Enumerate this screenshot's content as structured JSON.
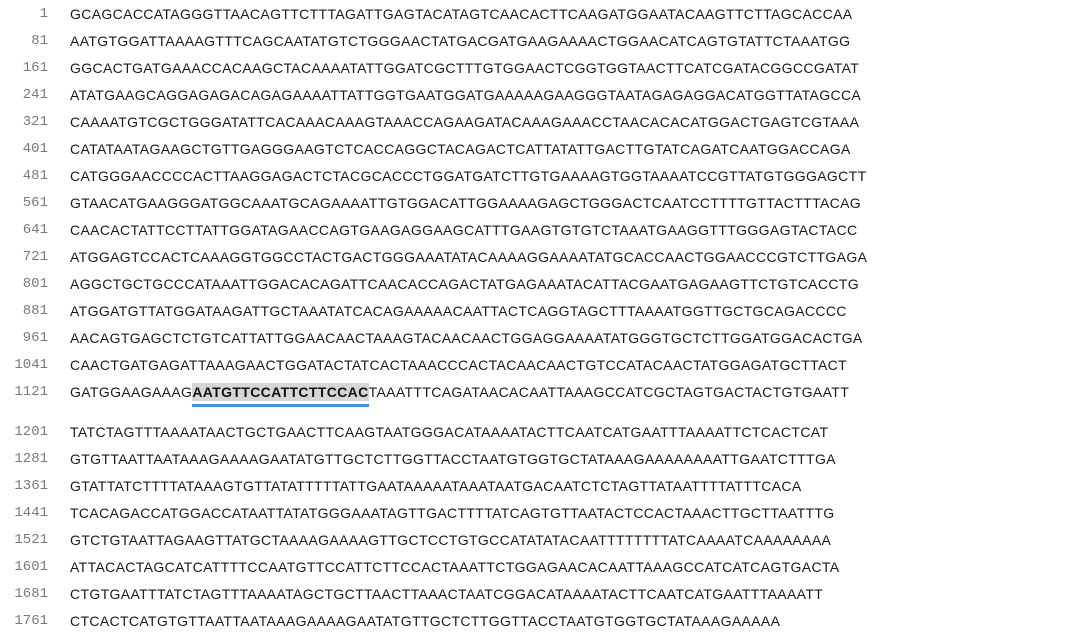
{
  "colors": {
    "background": "#ffffff",
    "position_text": "#7a7a7a",
    "sequence_text": "#1a1a1a",
    "highlight_bg": "#d6d6d6",
    "highlight_underline": "#4a90d9"
  },
  "sequence_rows": [
    {
      "pos": "1",
      "seq": "GCAGCACCATAGGGTTAACAGTTCTTTAGATTGAGTACATAGTCAACACTTCAAGATGGAATACAAGTTCTTAGCACCAA"
    },
    {
      "pos": "81",
      "seq": "AATGTGGATTAAAAGTTTCAGCAATATGTCTGGGAACTATGACGATGAAGAAAACTGGAACATCAGTGTATTCTAAATGG"
    },
    {
      "pos": "161",
      "seq": "GGCACTGATGAAACCACAAGCTACAAAATATTGGATCGCTTTGTGGAACTCGGTGGTAACTTCATCGATACGGCCGATAT"
    },
    {
      "pos": "241",
      "seq": "ATATGAAGCAGGAGAGACAGAGAAAATTATTGGTGAATGGATGAAAAAGAAGGGTAATAGAGAGGACATGGTTATAGCCA"
    },
    {
      "pos": "321",
      "seq": "CAAAATGTCGCTGGGATATTCACAAACAAAGTAAACCAGAAGATACAAAGAAACCTAACACACATGGACTGAGTCGTAAA"
    },
    {
      "pos": "401",
      "seq": "CATATAATAGAAGCTGTTGAGGGAAGTCTCACCAGGCTACAGACTCATTATATTGACTTGTATCAGATCAATGGACCAGA"
    },
    {
      "pos": "481",
      "seq": "CATGGGAACCCCACTTAAGGAGACTCTACGCACCCTGGATGATCTTGTGAAAAGTGGTAAAATCCGTTATGTGGGAGCTT"
    },
    {
      "pos": "561",
      "seq": "GTAACATGAAGGGATGGCAAATGCAGAAAATTGTGGACATTGGAAAAGAGCTGGGACTCAATCCTTTTGTTACTTTACAG"
    },
    {
      "pos": "641",
      "seq": "CAACACTATTCCTTATTGGATAGAACCAGTGAAGAGGAAGCATTTGAAGTGTGTCTAAATGAAGGTTTGGGAGTACTACC"
    },
    {
      "pos": "721",
      "seq": "ATGGAGTCCACTCAAAGGTGGCCTACTGACTGGGAAATATACAAAAGGAAAATATGCACCAACTGGAACCCGTCTTGAGA"
    },
    {
      "pos": "801",
      "seq": "AGGCTGCTGCCCATAAATTGGACACAGATTCAACACCAGACTATGAGAAATACATTACGAATGAGAAGTTCTGTCACCTG"
    },
    {
      "pos": "881",
      "seq": "ATGGATGTTATGGATAAGATTGCTAAATATCACAGAAAAACAATTACTCAGGTAGCTTTAAAATGGTTGCTGCAGACCCC"
    },
    {
      "pos": "961",
      "seq": "AACAGTGAGCTCTGTCATTATTGGAACAACTAAAGTACAACAACTGGAGGAAAATATGGGTGCTCTTGGATGGACACTGA"
    },
    {
      "pos": "1041",
      "seq": "CAACTGATGAGATTAAAGAACTGGATACTATCACTAAACCCACTACAACAACTGTCCATACAACTATGGAGATGCTTACT"
    },
    {
      "pos": "1121",
      "seq_before": "GATGGAAGAAAG",
      "seq_highlight": "AATGTTCCATTCTTCCAC",
      "seq_after": "TAAATTTCAGATAACACAATTAAAGCCATCGCTAGTGACTACTGTGAATT"
    },
    {
      "pos": "1201",
      "seq": "TATCTAGTTTAAAATAACTGCTGAACTTCAAGTAATGGGACATAAAATACTTCAATCATGAATTTAAAATTCTCACTCAT"
    },
    {
      "pos": "1281",
      "seq": "GTGTTAATTAATAAAGAAAAGAATATGTTGCTCTTGGTTACCTAATGTGGTGCTATAAAGAAAAAAAATTGAATCTTTGA"
    },
    {
      "pos": "1361",
      "seq": "GTATTATCTTTTATAAAGTGTTATATTTTTATTGAATAAAAATAAATAATGACAATCTCTAGTTATAATTTTATTTCACA"
    },
    {
      "pos": "1441",
      "seq": "TCACAGACCATGGACCATAATTATATGGGAAATAGTTGACTTTTATCAGTGTTAATACTCCACTAAACTTGCTTAATTTG"
    },
    {
      "pos": "1521",
      "seq": "GTCTGTAATTAGAAGTTATGCTAAAAGAAAAGTTGCTCCTGTGCCATATATACAATTTTTTTTATCAAAATCAAAAAAAA"
    },
    {
      "pos": "1601",
      "seq": "ATTACACTAGCATCATTTTCCAATGTTCCATTCTTCCACTAAATTCTGGAGAACACAATTAAAGCCATCATCAGTGACTA"
    },
    {
      "pos": "1681",
      "seq": "CTGTGAATTTATCTAGTTTAAAATAGCTGCTTAACTTAAACTAATCGGACATAAAATACTTCAATCATGAATTTAAAATT"
    },
    {
      "pos": "1761",
      "seq": "CTCACTCATGTGTTAATTAATAAAGAAAAGAATATGTTGCTCTTGGTTACCTAATGTGGTGCTATAAAGAAAAA"
    }
  ]
}
